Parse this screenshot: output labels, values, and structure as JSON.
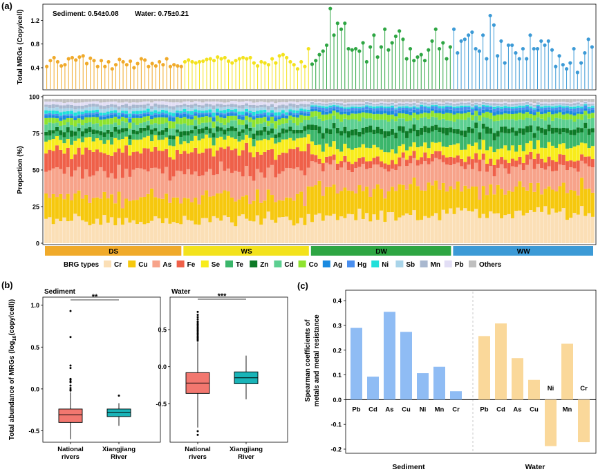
{
  "panel_labels": {
    "a": "(a)",
    "b": "(b)",
    "c": "(c)"
  },
  "colors": {
    "DS": "#f0aa2a",
    "WS": "#f3e21c",
    "DW": "#2ea643",
    "WW": "#3c9ad6",
    "box_national": "#f2776f",
    "box_xiangjiang": "#19b4b8",
    "bar_sediment": "#8fbcf4",
    "bar_water": "#fad89a"
  },
  "chart_data": [
    {
      "id": "lollipop",
      "type": "scatter",
      "title": "",
      "ylabel": "Total MRGs (Copy/cell)",
      "ylim": [
        0.05,
        1.45
      ],
      "yticks": [
        "0.4",
        "0.8",
        "1.2"
      ],
      "summary": {
        "sediment": "Sediment: 0.54±0.08",
        "water": "Water: 0.75±0.21"
      },
      "groups": [
        "DS",
        "WS",
        "DW",
        "WW"
      ],
      "series": [
        {
          "name": "DS",
          "values": [
            0.42,
            0.52,
            0.57,
            0.5,
            0.43,
            0.45,
            0.55,
            0.57,
            0.53,
            0.58,
            0.6,
            0.47,
            0.56,
            0.52,
            0.42,
            0.52,
            0.42,
            0.5,
            0.38,
            0.45,
            0.54,
            0.5,
            0.45,
            0.51,
            0.4,
            0.47,
            0.55,
            0.53,
            0.42,
            0.47,
            0.43,
            0.5,
            0.45,
            0.55,
            0.42,
            0.45,
            0.43,
            0.42
          ]
        },
        {
          "name": "WS",
          "values": [
            0.5,
            0.53,
            0.5,
            0.48,
            0.5,
            0.51,
            0.54,
            0.55,
            0.52,
            0.58,
            0.55,
            0.57,
            0.51,
            0.48,
            0.52,
            0.55,
            0.57,
            0.55,
            0.57,
            0.48,
            0.43,
            0.5,
            0.48,
            0.45,
            0.55,
            0.48,
            0.6,
            0.62,
            0.57,
            0.5,
            0.45,
            0.38,
            0.5,
            0.42,
            0.72
          ]
        },
        {
          "name": "DW",
          "values": [
            0.46,
            0.52,
            0.62,
            0.68,
            0.78,
            1.4,
            0.95,
            1.15,
            1.05,
            1.15,
            0.72,
            0.7,
            0.72,
            0.68,
            0.82,
            0.5,
            0.75,
            0.95,
            0.58,
            0.75,
            1.05,
            0.7,
            0.82,
            0.93,
            1.02,
            0.88,
            0.55,
            0.72,
            0.52,
            0.58,
            0.62,
            0.52,
            0.7,
            0.85,
            1.05,
            0.72,
            0.82,
            0.55,
            0.75
          ]
        },
        {
          "name": "WW",
          "values": [
            1.05,
            0.65,
            0.85,
            0.88,
            0.95,
            1.0,
            0.72,
            0.68,
            0.95,
            0.55,
            1.28,
            1.12,
            0.6,
            0.85,
            0.48,
            0.78,
            0.78,
            0.65,
            0.55,
            0.72,
            0.55,
            0.95,
            0.72,
            0.72,
            0.85,
            0.78,
            0.85,
            0.7,
            0.42,
            0.6,
            0.45,
            0.38,
            0.48,
            0.72,
            0.32,
            0.48,
            0.65,
            0.88,
            0.75
          ]
        }
      ]
    },
    {
      "id": "proportion",
      "type": "bar",
      "title": "",
      "ylabel": "Proportion (%)",
      "ylim": [
        0,
        100
      ],
      "yticks": [
        "0",
        "25",
        "50",
        "75",
        "100"
      ],
      "stacked": true,
      "legend_title": "BRG types",
      "group_labels": [
        "DS",
        "WS",
        "DW",
        "WW"
      ],
      "group_sizes": [
        38,
        35,
        39,
        39
      ],
      "legend": [
        "Cr",
        "Cu",
        "As",
        "Fe",
        "Se",
        "Te",
        "Zn",
        "Cd",
        "Co",
        "Ag",
        "Hg",
        "Ni",
        "Sb",
        "Mn",
        "Pb",
        "Others"
      ],
      "series_colors": [
        "#fbdfb6",
        "#f6c80e",
        "#f7a38a",
        "#ef6049",
        "#f8ec1c",
        "#3bb66b",
        "#0d7a27",
        "#5ccf91",
        "#8ee32e",
        "#1a8ae0",
        "#4a8fef",
        "#20e0da",
        "#a9d4e9",
        "#a9b8cf",
        "#e2def5",
        "#bfbfbf"
      ],
      "group_means": {
        "DS": [
          16,
          16,
          18,
          14,
          8,
          4,
          3,
          4,
          4,
          2,
          1,
          2,
          2,
          2,
          2,
          2
        ],
        "WS": [
          16,
          16,
          18,
          14,
          8,
          4,
          3,
          4,
          4,
          2,
          1,
          2,
          2,
          2,
          2,
          2
        ],
        "DW": [
          18,
          20,
          16,
          5,
          8,
          9,
          4,
          6,
          4,
          2,
          2,
          1,
          1,
          1,
          1,
          2
        ],
        "WW": [
          22,
          16,
          15,
          6,
          8,
          9,
          4,
          6,
          4,
          2,
          2,
          1,
          1,
          1,
          1,
          2
        ]
      }
    },
    {
      "id": "box_sediment",
      "type": "box",
      "title": "Sediment",
      "ylabel": "Total abundance of MRGs (log10(copy/cell))",
      "ylim": [
        -0.62,
        1.08
      ],
      "yticks": [
        "-0.5",
        "0.0",
        "0.5",
        "1.0"
      ],
      "categories": [
        "National rivers",
        "Xiangjiang River"
      ],
      "boxes": [
        {
          "min": -0.6,
          "q1": -0.4,
          "median": -0.31,
          "q3": -0.24,
          "max": -0.04
        },
        {
          "min": -0.44,
          "q1": -0.33,
          "median": -0.28,
          "q3": -0.24,
          "max": -0.17
        }
      ],
      "outliers": [
        [
          0.93,
          0.62,
          0.28,
          0.25,
          0.12,
          0.11,
          0.09,
          0.08,
          0.04,
          0.01,
          -0.01,
          -0.02
        ],
        [
          -0.08
        ]
      ],
      "significance": "**"
    },
    {
      "id": "box_water",
      "type": "box",
      "title": "Water",
      "ylabel": "",
      "ylim": [
        -1.0,
        0.92
      ],
      "yticks": [
        "-0.5",
        "0.0",
        "0.5"
      ],
      "categories": [
        "National rivers",
        "Xiangjiang River"
      ],
      "boxes": [
        {
          "min": -0.82,
          "q1": -0.36,
          "median": -0.22,
          "q3": -0.08,
          "max": 0.33
        },
        {
          "min": -0.44,
          "q1": -0.23,
          "median": -0.15,
          "q3": -0.07,
          "max": 0.15
        }
      ],
      "outliers": [
        [
          0.74,
          0.7,
          0.67,
          0.64,
          0.61,
          0.59,
          0.57,
          0.55,
          0.53,
          0.51,
          0.49,
          0.47,
          0.45,
          0.43,
          0.41,
          0.39,
          0.37,
          0.35,
          -0.87,
          -0.92
        ],
        []
      ],
      "significance": "***"
    },
    {
      "id": "spearman",
      "type": "bar",
      "title": "",
      "ylabel": "Spearman coefficients of metals and metal resistance",
      "ylim": [
        -0.2,
        0.42
      ],
      "yticks": [
        "-0.2",
        "-0.1",
        "0.0",
        "0.1",
        "0.2",
        "0.3",
        "0.4"
      ],
      "categories": [
        "Pb",
        "Cd",
        "As",
        "Cu",
        "Ni",
        "Mn",
        "Cr"
      ],
      "series": [
        {
          "name": "Sediment",
          "values": [
            0.29,
            0.093,
            0.355,
            0.274,
            0.107,
            0.133,
            0.034
          ]
        },
        {
          "name": "Water",
          "values": [
            0.257,
            0.308,
            0.168,
            0.08,
            -0.188,
            0.226,
            -0.172
          ]
        }
      ]
    }
  ]
}
